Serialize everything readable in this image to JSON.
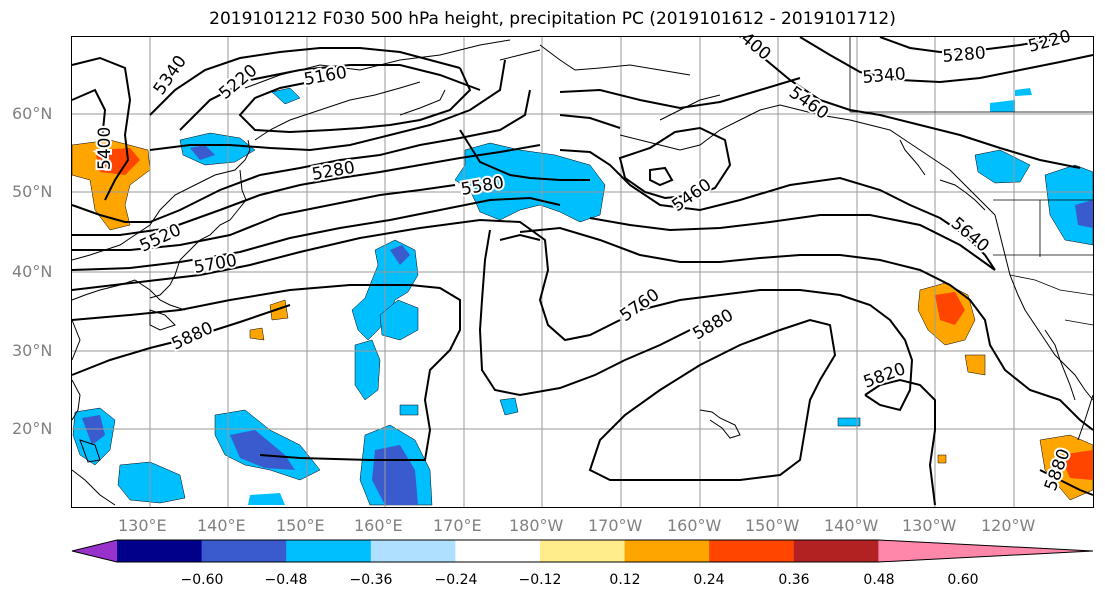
{
  "title": "2019101212 F030 500 hPa height, precipitation PC (2019101612 - 2019101712)",
  "lat_labels": [
    "60°N",
    "50°N",
    "40°N",
    "30°N",
    "20°N"
  ],
  "lon_labels": [
    "130°E",
    "140°E",
    "150°E",
    "160°E",
    "170°E",
    "180°W",
    "170°W",
    "160°W",
    "150°W",
    "140°W",
    "130°W",
    "120°W"
  ],
  "contour_labels": [
    "5340",
    "5220",
    "5160",
    "5400",
    "5280",
    "5520",
    "5700",
    "5880",
    "5580",
    "5460",
    "400",
    "5460",
    "5340",
    "5280",
    "5220",
    "5640",
    "5760",
    "5880",
    "5820",
    "5880"
  ],
  "colorbar": {
    "ticks": [
      "−0.60",
      "−0.48",
      "−0.36",
      "−0.24",
      "−0.12",
      "0.12",
      "0.24",
      "0.36",
      "0.48",
      "0.60"
    ],
    "colors": [
      "#9932cc",
      "#00008b",
      "#3a5bcd",
      "#00bfff",
      "#b0e0ff",
      "#ffffff",
      "#ffec8b",
      "#ffa500",
      "#ff4500",
      "#b22222",
      "#ff88aa"
    ]
  },
  "colors": {
    "contour": "#000000",
    "grid": "#999999",
    "axis_label": "#808080"
  }
}
